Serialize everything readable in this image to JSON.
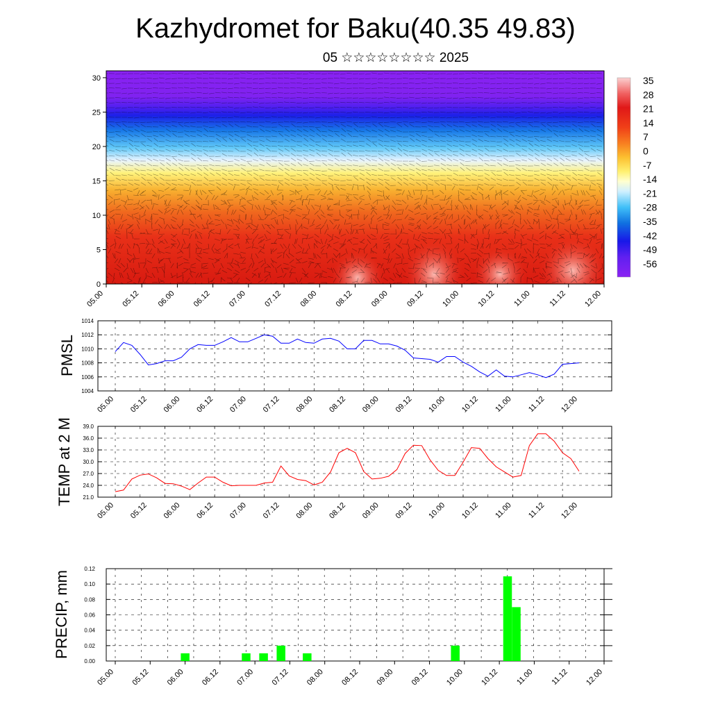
{
  "title": "Kazhydromet for Baku(40.35 49.83)",
  "subtitle": "05 ☆☆☆☆☆☆☆☆ 2025",
  "chart_data": [
    {
      "type": "heatmap",
      "name": "temperature-cross-section",
      "x_ticks": [
        "05.00",
        "05.12",
        "06.00",
        "06.12",
        "07.00",
        "07.12",
        "08.00",
        "08.12",
        "09.00",
        "09.12",
        "10.00",
        "10.12",
        "11.00",
        "11.12",
        "12.00"
      ],
      "y_ticks": [
        0,
        5,
        10,
        15,
        20,
        25,
        30
      ],
      "ylim": [
        0,
        31
      ],
      "colorbar_labels": [
        "35",
        "28",
        "21",
        "14",
        "7",
        "0",
        "-7",
        "-14",
        "-21",
        "-28",
        "-35",
        "-42",
        "-49",
        "-56"
      ],
      "colors": {
        "hot": "#e02010",
        "warm": "#f07820",
        "yellow": "#fff070",
        "cyan": "#20b0f0",
        "blue": "#2040e0",
        "purple": "#8020f0"
      }
    },
    {
      "type": "line",
      "name": "pmsl",
      "ylabel": "PMSL",
      "x_ticks": [
        "05.00",
        "05.12",
        "06.00",
        "06.12",
        "07.00",
        "07.12",
        "08.00",
        "08.12",
        "09.00",
        "09.12",
        "10.00",
        "10.12",
        "11.00",
        "11.12",
        "12.00"
      ],
      "y_ticks": [
        "1004",
        "1006",
        "1008",
        "1010",
        "1012",
        "1014"
      ],
      "ylim": [
        1004,
        1014
      ],
      "color": "#0000ff",
      "values": [
        1009.6,
        1010.9,
        1010.5,
        1009.2,
        1007.7,
        1007.9,
        1008.3,
        1008.3,
        1008.8,
        1010.0,
        1010.6,
        1010.5,
        1010.5,
        1011.0,
        1011.6,
        1011.0,
        1011.0,
        1011.5,
        1012.0,
        1011.8,
        1010.8,
        1010.8,
        1011.4,
        1010.9,
        1010.8,
        1011.4,
        1011.5,
        1011.1,
        1010.0,
        1010.0,
        1011.2,
        1011.2,
        1010.7,
        1010.7,
        1010.4,
        1009.8,
        1008.7,
        1008.6,
        1008.5,
        1008.1,
        1008.9,
        1008.9,
        1008.1,
        1007.5,
        1006.7,
        1006.1,
        1007.0,
        1006.1,
        1006.0,
        1006.3,
        1006.6,
        1006.3,
        1005.9,
        1006.4,
        1007.8,
        1007.9,
        1008.0
      ]
    },
    {
      "type": "line",
      "name": "temp-2m",
      "ylabel": "TEMP at 2 M",
      "x_ticks": [
        "05.00",
        "05.12",
        "06.00",
        "06.12",
        "07.00",
        "07.12",
        "08.00",
        "08.12",
        "09.00",
        "09.12",
        "10.00",
        "10.12",
        "11.00",
        "11.12",
        "12.00"
      ],
      "y_ticks": [
        "21.0",
        "24.0",
        "27.0",
        "30.0",
        "33.0",
        "36.0",
        "39.0"
      ],
      "ylim": [
        21,
        39
      ],
      "color": "#ff0000",
      "values": [
        22.4,
        22.8,
        25.6,
        26.6,
        26.9,
        25.9,
        24.5,
        24.4,
        23.8,
        22.9,
        24.6,
        26.1,
        26.1,
        24.8,
        23.9,
        24.0,
        24.0,
        24.0,
        24.6,
        24.8,
        28.9,
        26.4,
        25.5,
        25.2,
        24.1,
        24.8,
        27.4,
        32.3,
        33.4,
        32.3,
        27.5,
        25.6,
        25.8,
        26.3,
        28.0,
        32.1,
        34.2,
        34.1,
        30.5,
        27.8,
        26.5,
        26.5,
        29.9,
        33.6,
        33.4,
        30.8,
        28.7,
        27.4,
        26.1,
        26.5,
        34.1,
        37.1,
        37.1,
        35.2,
        32.3,
        30.8,
        27.6
      ]
    },
    {
      "type": "bar",
      "name": "precip",
      "ylabel": "PRECIP, mm",
      "x_ticks": [
        "05.00",
        "05.12",
        "06.00",
        "06.12",
        "07.00",
        "07.12",
        "08.00",
        "08.12",
        "09.00",
        "09.12",
        "10.00",
        "10.12",
        "11.00",
        "11.12",
        "12.00"
      ],
      "y_ticks": [
        "0.00",
        "0.02",
        "0.04",
        "0.06",
        "0.08",
        "0.10",
        "0.12"
      ],
      "ylim": [
        0,
        0.12
      ],
      "color": "#00ff00",
      "values": [
        0,
        0,
        0,
        0,
        0,
        0,
        0,
        0,
        0.01,
        0,
        0,
        0,
        0,
        0,
        0,
        0.01,
        0,
        0.01,
        0,
        0.02,
        0,
        0,
        0.01,
        0,
        0,
        0,
        0,
        0,
        0,
        0,
        0,
        0,
        0,
        0,
        0,
        0,
        0,
        0,
        0,
        0.02,
        0,
        0,
        0,
        0,
        0,
        0.11,
        0.07,
        0,
        0,
        0,
        0,
        0,
        0,
        0,
        0,
        0,
        0
      ]
    }
  ]
}
